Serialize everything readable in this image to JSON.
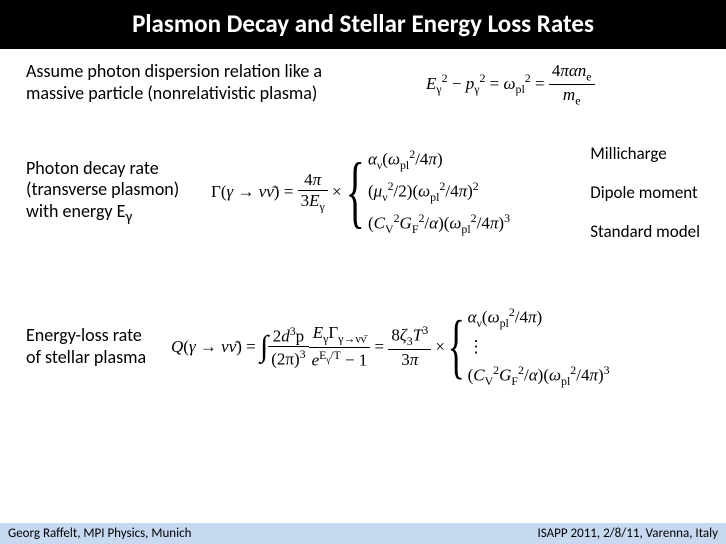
{
  "title": "Plasmon Decay and Stellar Energy Loss Rates",
  "assume_text": "Assume photon dispersion relation like a massive particle (nonrelativistic plasma)",
  "decay_label_l1": "Photon decay rate",
  "decay_label_l2": "(transverse plasmon)",
  "decay_label_l3": "with energy E",
  "decay_label_sub": "γ",
  "case_label_1": "Millicharge",
  "case_label_2": "Dipole moment",
  "case_label_3": "Standard model",
  "energy_label_l1": "Energy-loss rate",
  "energy_label_l2": "of stellar plasma",
  "footer_left": "Georg Raffelt, MPI Physics, Munich",
  "footer_right": "ISAPP 2011, 2/8/11, Varenna, Italy",
  "colors": {
    "title_bg": "#000000",
    "title_fg": "#ffffff",
    "body_bg": "#ffffff",
    "footer_bg": "#c6d9f1",
    "text": "#000000"
  },
  "typography": {
    "title_fontsize": 25,
    "body_fontsize": 18,
    "math_fontsize": 17,
    "footer_fontsize": 13,
    "title_weight": "bold"
  },
  "equations": {
    "dispersion": {
      "lhs_E": "E",
      "lhs_E_sub": "γ",
      "lhs_E_exp": "2",
      "minus": "−",
      "lhs_p": "p",
      "lhs_p_sub": "γ",
      "lhs_p_exp": "2",
      "eq": "=",
      "omega": "ω",
      "omega_sub": "pl",
      "omega_exp": "2",
      "eq2": "=",
      "frac_num_coef": "4",
      "frac_num_pi": "π",
      "frac_num_alpha": "α",
      "frac_num_n": "n",
      "frac_num_n_sub": "e",
      "frac_den_m": "m",
      "frac_den_m_sub": "e"
    },
    "decay": {
      "Gamma": "Γ",
      "open": "(",
      "gamma": "γ",
      "arrow": "→",
      "nu": "ν",
      "nubar": "ν̄",
      "close": ")",
      "eq": "=",
      "frac_num_coef": "4",
      "frac_num_pi": "π",
      "frac_den_coef": "3",
      "frac_den_E": "E",
      "frac_den_E_sub": "γ",
      "times": "×",
      "cases": [
        {
          "alpha": "α",
          "alpha_sub": "ν",
          "open": "(",
          "omega": "ω",
          "omega_sub": "pl",
          "omega_exp": "2",
          "div": "/",
          "four": "4",
          "pi": "π",
          "close": ")"
        },
        {
          "open1": "(",
          "mu": "μ",
          "mu_sub": "ν",
          "mu_exp": "2",
          "div1": "/",
          "two": "2",
          "close1": ")",
          "open2": "(",
          "omega": "ω",
          "omega_sub": "pl",
          "omega_exp": "2",
          "div2": "/",
          "four": "4",
          "pi": "π",
          "close2": ")",
          "outer_exp": "2"
        },
        {
          "open1": "(",
          "C": "C",
          "C_sub": "V",
          "C_exp": "2",
          "G": "G",
          "G_sub": "F",
          "G_exp": "2",
          "div1": "/",
          "alpha": "α",
          "close1": ")",
          "open2": "(",
          "omega": "ω",
          "omega_sub": "pl",
          "omega_exp": "2",
          "div2": "/",
          "four": "4",
          "pi": "π",
          "close2": ")",
          "outer_exp": "3"
        }
      ]
    },
    "energyloss": {
      "Q": "Q",
      "open": "(",
      "gamma": "γ",
      "arrow": "→",
      "nu": "ν",
      "nubar": "ν̄",
      "close": ")",
      "eq": "=",
      "int": "∫",
      "frac1_num_coef": "2",
      "frac1_num_d": "d",
      "frac1_num_d_exp": "3",
      "frac1_num_p": "p",
      "frac1_den_open": "(",
      "frac1_den_2pi": "2π",
      "frac1_den_close": ")",
      "frac1_den_exp": "3",
      "frac2_num_E": "E",
      "frac2_num_E_sub": "γ",
      "frac2_num_Gamma": "Γ",
      "frac2_num_Gamma_sub": "γ→νν̄",
      "frac2_den_e": "e",
      "frac2_den_exp_E": "E",
      "frac2_den_exp_E_sub": "γ",
      "frac2_den_exp_div": "/",
      "frac2_den_exp_T": "T",
      "frac2_den_minus": "−",
      "frac2_den_one": "1",
      "eq2": "=",
      "frac3_num_coef": "8",
      "frac3_num_zeta": "ζ",
      "frac3_num_zeta_sub": "3",
      "frac3_num_T": "T",
      "frac3_num_T_exp": "3",
      "frac3_den_coef": "3",
      "frac3_den_pi": "π",
      "times": "×"
    }
  }
}
